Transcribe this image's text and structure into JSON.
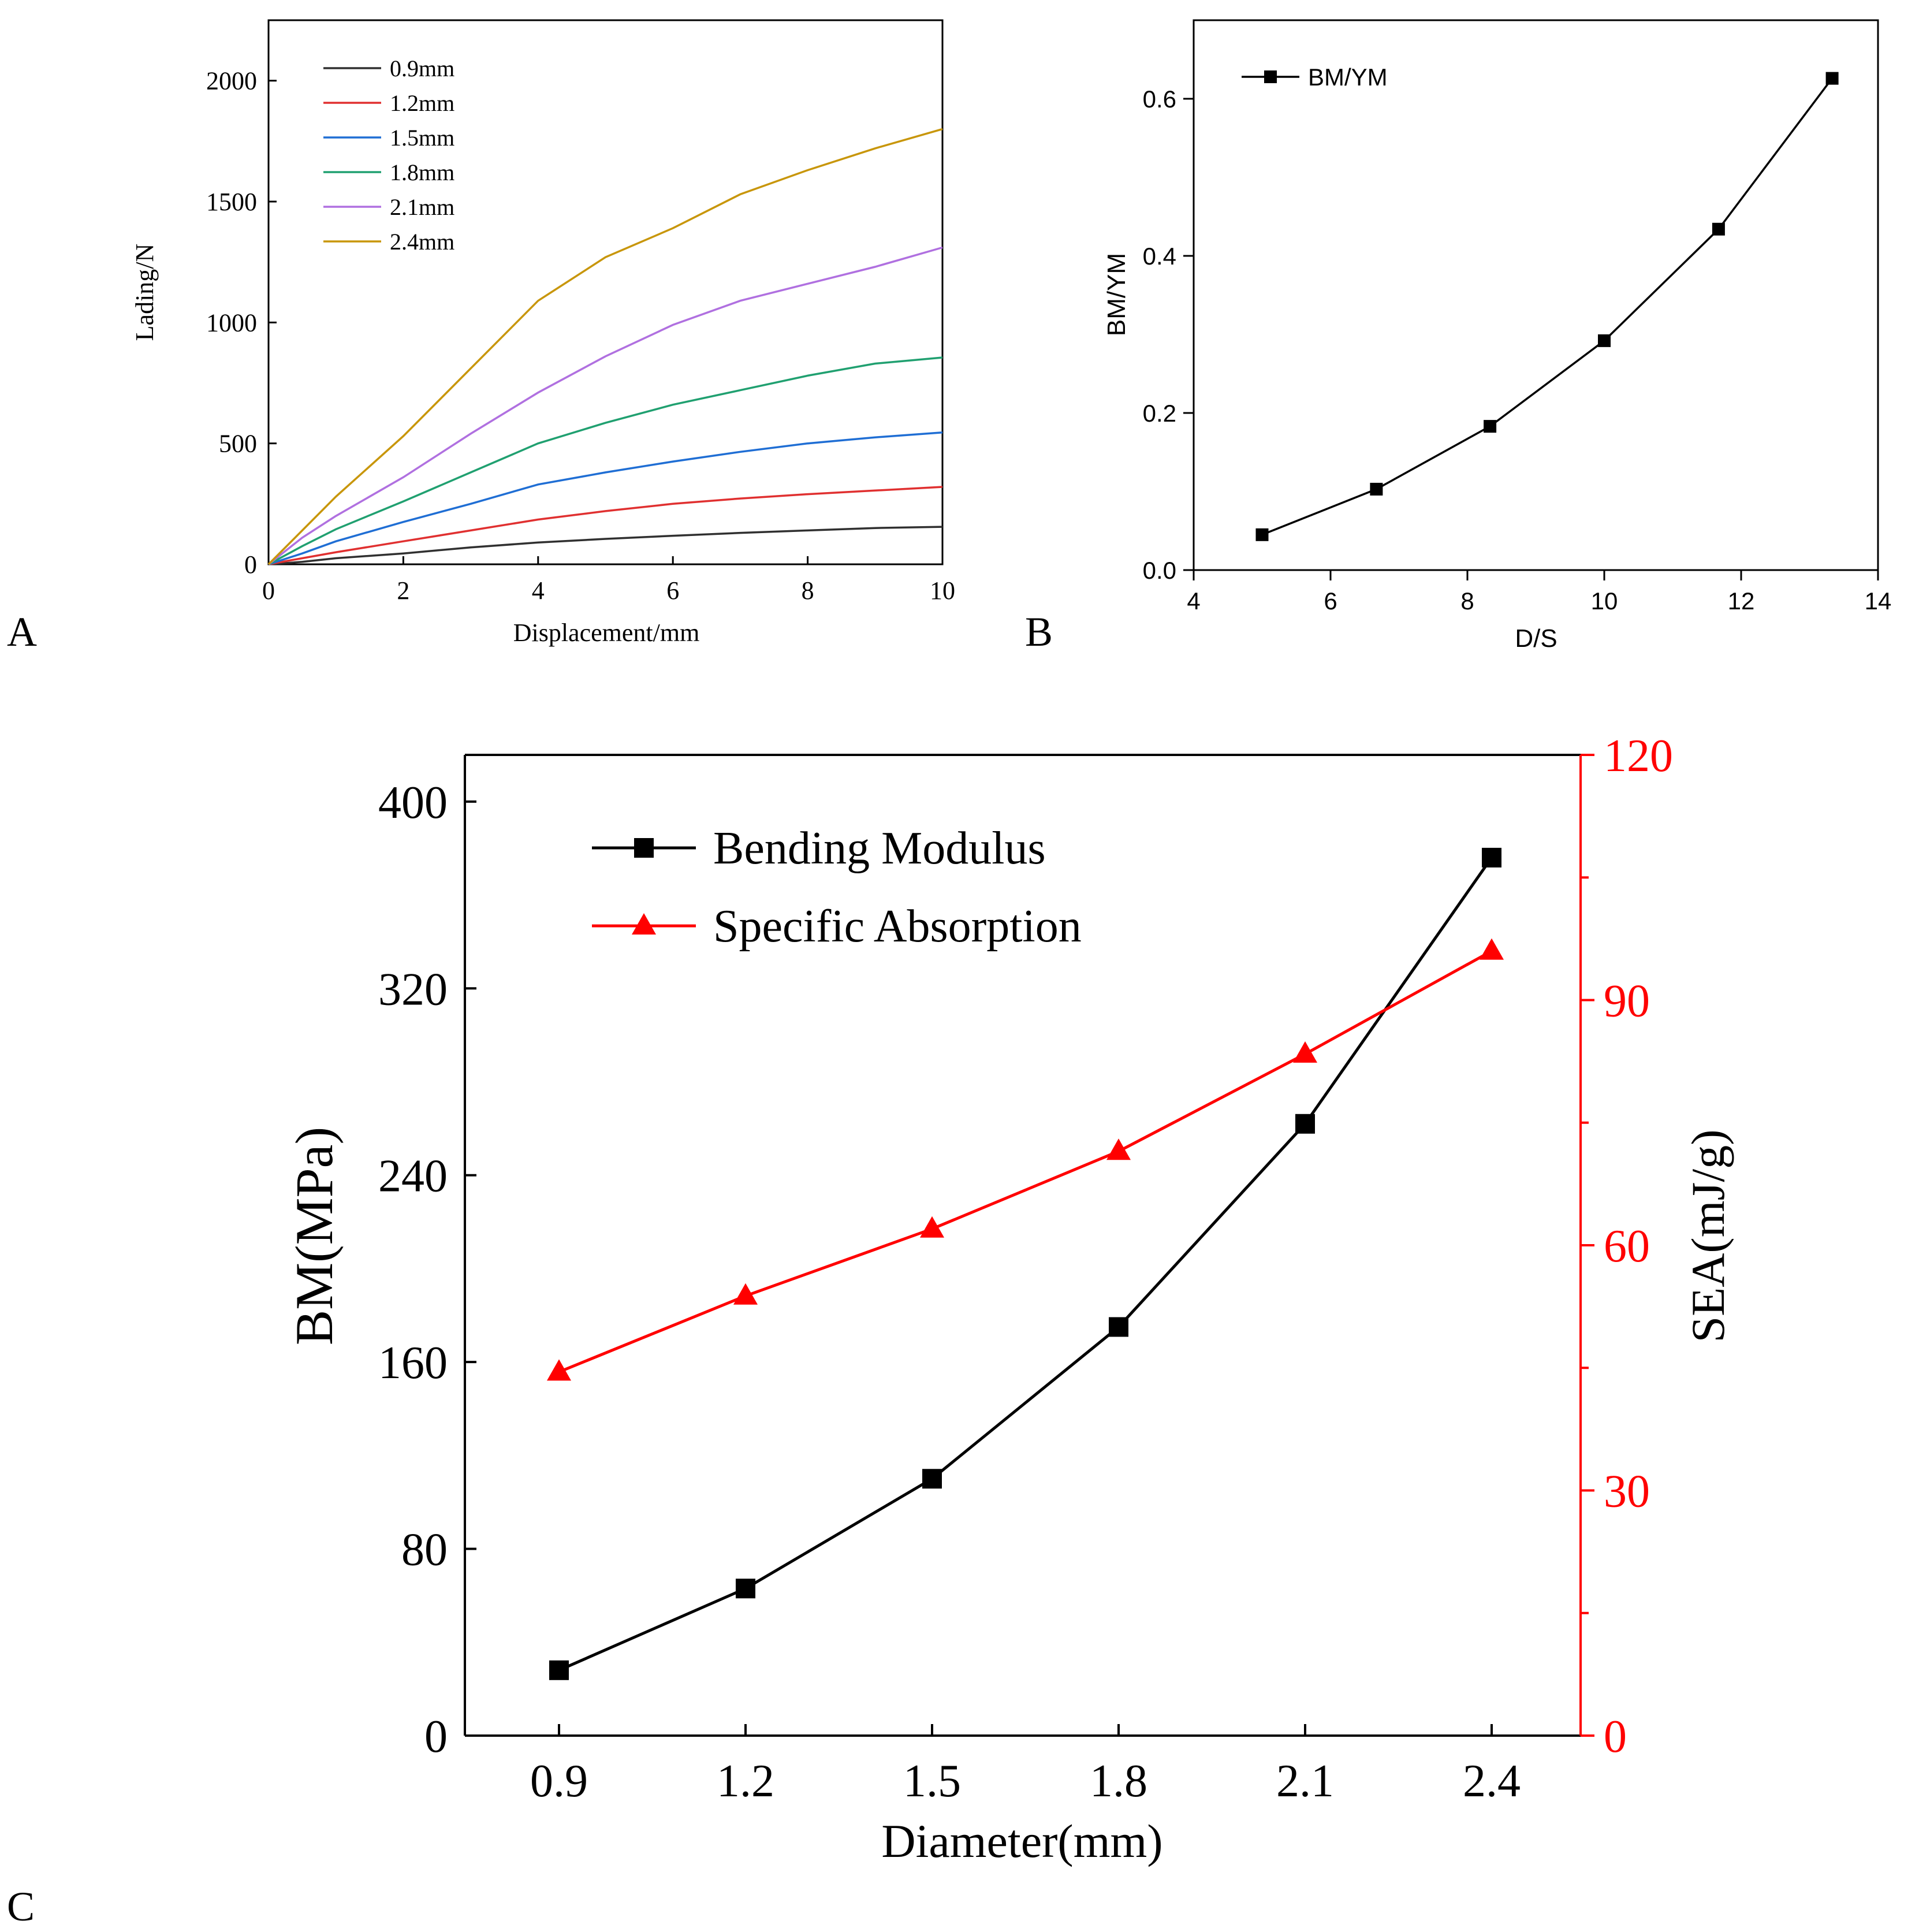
{
  "panels": {
    "a": {
      "letter": "A"
    },
    "b": {
      "letter": "B"
    },
    "c": {
      "letter": "C"
    }
  },
  "chart_data": [
    {
      "id": "A",
      "type": "line",
      "xlabel": "Displacement/mm",
      "ylabel": "Lading/N",
      "xlim": [
        0,
        10
      ],
      "ylim": [
        0,
        2250
      ],
      "xticks": [
        0,
        2,
        4,
        6,
        8,
        10
      ],
      "yticks": [
        0,
        500,
        1000,
        1500,
        2000
      ],
      "legend_position": "top-left",
      "grid": false,
      "series": [
        {
          "name": "0.9mm",
          "color": "#303030",
          "x": [
            0,
            0.5,
            1,
            2,
            3,
            4,
            5,
            6,
            7,
            8,
            9,
            10
          ],
          "y": [
            0,
            10,
            25,
            45,
            70,
            90,
            105,
            118,
            130,
            140,
            150,
            155
          ]
        },
        {
          "name": "1.2mm",
          "color": "#e03030",
          "x": [
            0,
            0.5,
            1,
            2,
            3,
            4,
            5,
            6,
            7,
            8,
            9,
            10
          ],
          "y": [
            0,
            25,
            50,
            95,
            140,
            185,
            220,
            250,
            272,
            290,
            305,
            320
          ]
        },
        {
          "name": "1.5mm",
          "color": "#1f6ed4",
          "x": [
            0,
            0.5,
            1,
            2,
            3,
            4,
            5,
            6,
            7,
            8,
            9,
            10
          ],
          "y": [
            0,
            45,
            95,
            175,
            250,
            330,
            380,
            425,
            465,
            500,
            525,
            545
          ]
        },
        {
          "name": "1.8mm",
          "color": "#20a070",
          "x": [
            0,
            0.5,
            1,
            2,
            3,
            4,
            5,
            6,
            7,
            8,
            9,
            10
          ],
          "y": [
            0,
            75,
            145,
            260,
            380,
            500,
            585,
            660,
            720,
            780,
            830,
            855
          ]
        },
        {
          "name": "2.1mm",
          "color": "#b070e0",
          "x": [
            0,
            0.5,
            1,
            2,
            3,
            4,
            5,
            6,
            7,
            8,
            9,
            10
          ],
          "y": [
            0,
            110,
            200,
            360,
            540,
            710,
            860,
            990,
            1090,
            1160,
            1230,
            1310
          ]
        },
        {
          "name": "2.4mm",
          "color": "#c8960a",
          "x": [
            0,
            0.5,
            1,
            2,
            3,
            4,
            5,
            6,
            7,
            8,
            9,
            10
          ],
          "y": [
            0,
            140,
            280,
            530,
            810,
            1090,
            1270,
            1390,
            1530,
            1630,
            1720,
            1800
          ]
        }
      ]
    },
    {
      "id": "B",
      "type": "line",
      "xlabel": "D/S",
      "ylabel": "BM/YM",
      "xlim": [
        4,
        14
      ],
      "ylim": [
        0,
        0.7
      ],
      "xticks": [
        4,
        6,
        8,
        10,
        12,
        14
      ],
      "yticks": [
        0.0,
        0.2,
        0.4,
        0.6
      ],
      "legend_position": "top-left",
      "grid": false,
      "series": [
        {
          "name": "BM/YM",
          "color": "#000000",
          "x": [
            5,
            6.67,
            8.33,
            10,
            11.67,
            13.33
          ],
          "y": [
            0.045,
            0.103,
            0.183,
            0.292,
            0.434,
            0.626
          ]
        }
      ]
    },
    {
      "id": "C",
      "type": "line",
      "xlabel": "Diameter(mm)",
      "ylabel": "BM(MPa)",
      "y2label": "SEA(mJ/g)",
      "categories": [
        "0.9",
        "1.2",
        "1.5",
        "1.8",
        "2.1",
        "2.4"
      ],
      "ylim": [
        0,
        420
      ],
      "y2lim": [
        0,
        120
      ],
      "yticks": [
        0,
        80,
        160,
        240,
        320,
        400
      ],
      "y2ticks": [
        0,
        30,
        60,
        90,
        120
      ],
      "legend_position": "top-left",
      "grid": false,
      "series": [
        {
          "name": "Bending Modulus",
          "axis": "left",
          "color": "#000000",
          "values": [
            28,
            63,
            110,
            175,
            262,
            376
          ]
        },
        {
          "name": "Specific Absorption",
          "axis": "right",
          "color": "#ff0000",
          "values": [
            44.5,
            53.8,
            62,
            71.5,
            83.4,
            96
          ]
        }
      ]
    }
  ]
}
